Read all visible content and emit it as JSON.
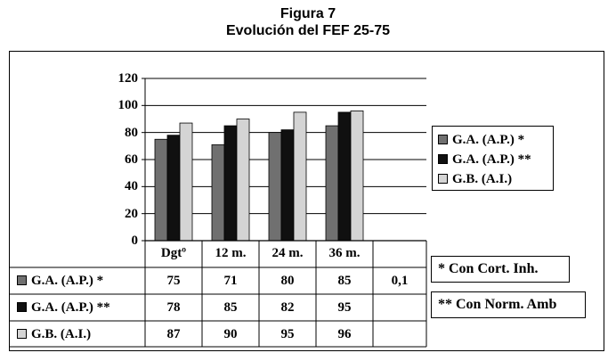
{
  "figure": {
    "number": "Figura 7",
    "title": "Evolución del FEF 25-75"
  },
  "chart_data": {
    "type": "bar",
    "categories": [
      "Dgtº",
      "12 m.",
      "24 m.",
      "36 m."
    ],
    "series": [
      {
        "name": "G.A. (A.P.) *",
        "values": [
          75,
          71,
          80,
          85
        ],
        "color": "#707070"
      },
      {
        "name": "G.A. (A.P.) **",
        "values": [
          78,
          85,
          82,
          95
        ],
        "color": "#101010"
      },
      {
        "name": "G.B. (A.I.)",
        "values": [
          87,
          90,
          95,
          96
        ],
        "color": "#d4d4d4"
      }
    ],
    "ylim": [
      0,
      120
    ],
    "yticks": [
      "0",
      "20",
      "40",
      "60",
      "80",
      "100",
      "120"
    ],
    "grid": true,
    "legend": "right",
    "extra_column": [
      "0,1",
      "",
      ""
    ]
  },
  "notes": [
    "* Con Cort. Inh.",
    "** Con Norm. Amb"
  ]
}
